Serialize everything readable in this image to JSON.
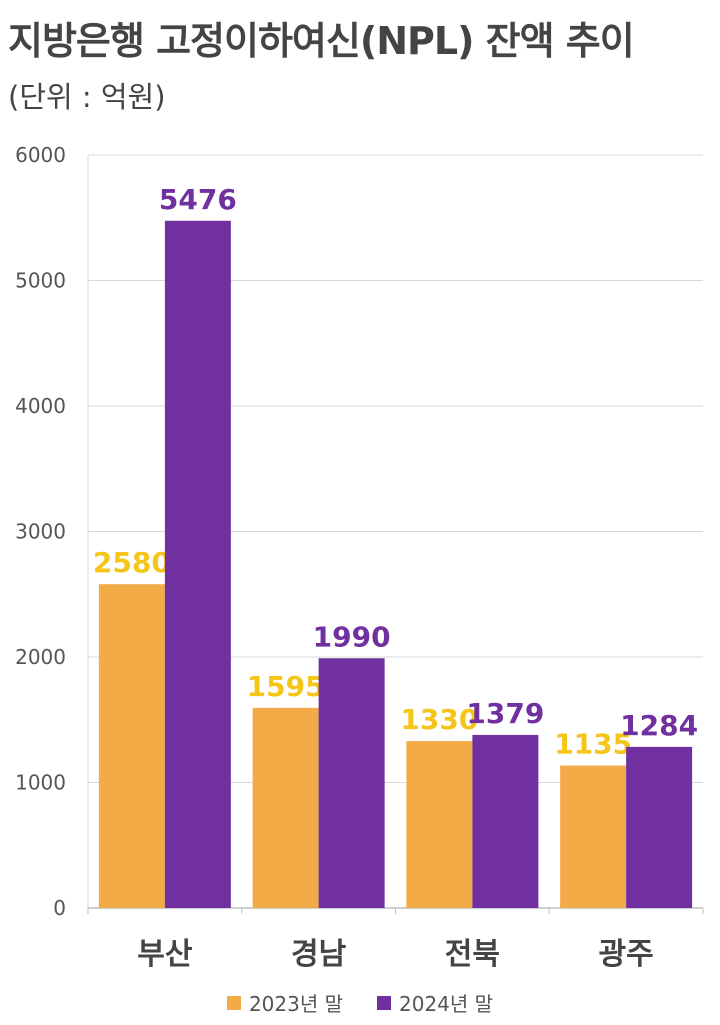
{
  "title": "지방은행 고정이하여신(NPL) 잔액 추이",
  "subtitle": "(단위 : 억원)",
  "chart_data": {
    "type": "bar",
    "categories": [
      "부산",
      "경남",
      "전북",
      "광주"
    ],
    "series": [
      {
        "name": "2023년 말",
        "values": [
          2580,
          1595,
          1330,
          1135
        ],
        "color": "#f2ab47",
        "label_color": "#f5c518"
      },
      {
        "name": "2024년 말",
        "values": [
          5476,
          1990,
          1379,
          1284
        ],
        "color": "#7030a0",
        "label_color": "#7030a0"
      }
    ],
    "ylim": [
      0,
      6000
    ],
    "yticks": [
      "0",
      "1000",
      "2000",
      "3000",
      "4000",
      "5000",
      "6000"
    ],
    "grid": true,
    "legend_position": "bottom"
  }
}
